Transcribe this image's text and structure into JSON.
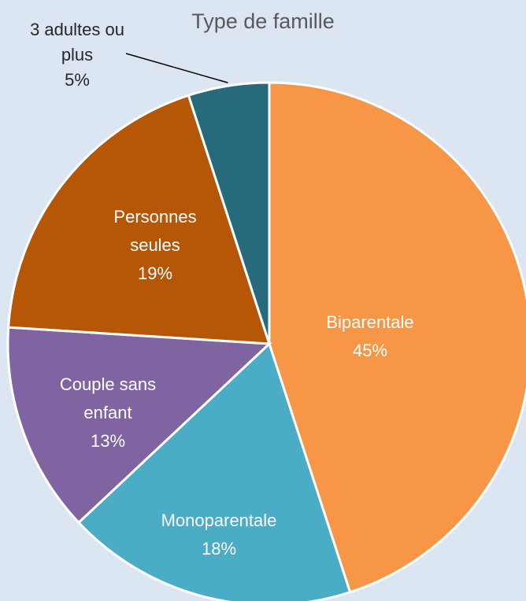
{
  "chart_data": {
    "type": "pie",
    "title": "Type de famille",
    "categories": [
      "Biparentale",
      "Monoparentale",
      "Couple sans enfant",
      "Personnes seules",
      "3 adultes ou plus"
    ],
    "values": [
      45,
      18,
      13,
      19,
      5
    ],
    "value_labels": [
      "45%",
      "18%",
      "13%",
      "19%",
      "5%"
    ],
    "colors": [
      "#f79646",
      "#4bacc6",
      "#8064a2",
      "#b65708",
      "#276a7c"
    ]
  }
}
